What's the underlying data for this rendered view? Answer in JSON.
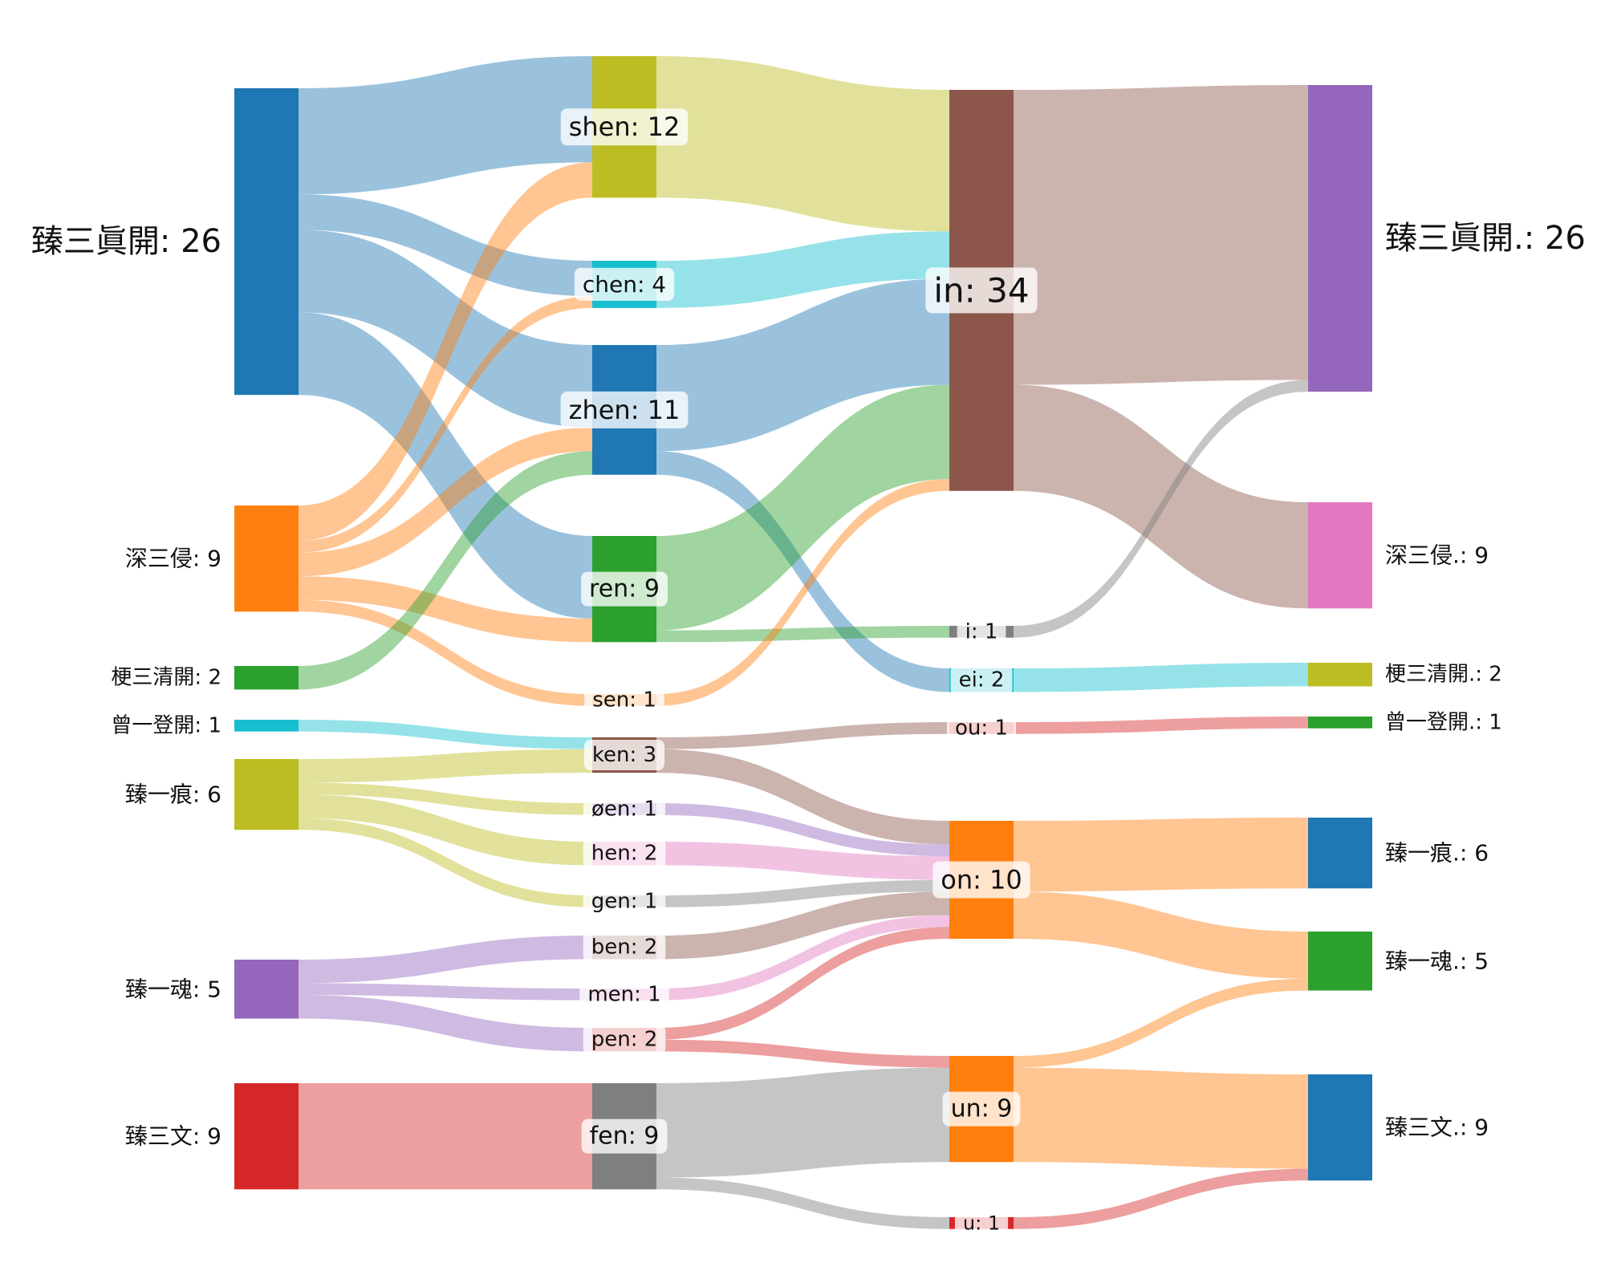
{
  "chart_data": {
    "type": "sankey",
    "title": "",
    "columns": [
      [
        "臻三眞開",
        "深三侵",
        "梗三清開",
        "曾一登開",
        "臻一痕",
        "臻一魂",
        "臻三文"
      ],
      [
        "shen",
        "chen",
        "zhen",
        "ren",
        "sen",
        "ken",
        "øen",
        "hen",
        "gen",
        "ben",
        "men",
        "pen",
        "fen"
      ],
      [
        "in",
        "i",
        "ei",
        "ou",
        "on",
        "un",
        "u"
      ],
      [
        "臻三眞開.",
        "深三侵.",
        "梗三清開.",
        "曾一登開.",
        "臻一痕.",
        "臻一魂.",
        "臻三文."
      ]
    ],
    "nodes": [
      {
        "name": "臻三眞開",
        "value": 26,
        "label": "臻三眞開: 26",
        "color": "#1f77b4"
      },
      {
        "name": "深三侵",
        "value": 9,
        "label": "深三侵: 9",
        "color": "#ff7f0e"
      },
      {
        "name": "梗三清開",
        "value": 2,
        "label": "梗三清開: 2",
        "color": "#2ca02c"
      },
      {
        "name": "曾一登開",
        "value": 1,
        "label": "曾一登開: 1",
        "color": "#17becf"
      },
      {
        "name": "臻一痕",
        "value": 6,
        "label": "臻一痕: 6",
        "color": "#bcbd22"
      },
      {
        "name": "臻一魂",
        "value": 5,
        "label": "臻一魂: 5",
        "color": "#9467bd"
      },
      {
        "name": "臻三文",
        "value": 9,
        "label": "臻三文: 9",
        "color": "#d62728"
      },
      {
        "name": "shen",
        "value": 12,
        "label": "shen: 12",
        "color": "#bcbd22"
      },
      {
        "name": "chen",
        "value": 4,
        "label": "chen: 4",
        "color": "#17becf"
      },
      {
        "name": "zhen",
        "value": 11,
        "label": "zhen: 11",
        "color": "#1f77b4"
      },
      {
        "name": "ren",
        "value": 9,
        "label": "ren: 9",
        "color": "#2ca02c"
      },
      {
        "name": "sen",
        "value": 1,
        "label": "sen: 1",
        "color": "#ff7f0e"
      },
      {
        "name": "ken",
        "value": 3,
        "label": "ken: 3",
        "color": "#8c564b"
      },
      {
        "name": "øen",
        "value": 1,
        "label": "øen: 1",
        "color": "#9467bd"
      },
      {
        "name": "hen",
        "value": 2,
        "label": "hen: 2",
        "color": "#e377c2"
      },
      {
        "name": "gen",
        "value": 1,
        "label": "gen: 1",
        "color": "#7f7f7f"
      },
      {
        "name": "ben",
        "value": 2,
        "label": "ben: 2",
        "color": "#8c564b"
      },
      {
        "name": "men",
        "value": 1,
        "label": "men: 1",
        "color": "#e377c2"
      },
      {
        "name": "pen",
        "value": 2,
        "label": "pen: 2",
        "color": "#d62728"
      },
      {
        "name": "fen",
        "value": 9,
        "label": "fen: 9",
        "color": "#7f7f7f"
      },
      {
        "name": "in",
        "value": 34,
        "label": "in: 34",
        "color": "#8c564b"
      },
      {
        "name": "i",
        "value": 1,
        "label": "i: 1",
        "color": "#7f7f7f"
      },
      {
        "name": "ei",
        "value": 2,
        "label": "ei: 2",
        "color": "#17becf"
      },
      {
        "name": "ou",
        "value": 1,
        "label": "ou: 1",
        "color": "#d62728"
      },
      {
        "name": "on",
        "value": 10,
        "label": "on: 10",
        "color": "#ff7f0e"
      },
      {
        "name": "un",
        "value": 9,
        "label": "un: 9",
        "color": "#ff7f0e"
      },
      {
        "name": "u",
        "value": 1,
        "label": "u: 1",
        "color": "#d62728"
      },
      {
        "name": "臻三眞開.",
        "value": 26,
        "label": "臻三眞開.: 26",
        "color": "#9467bd"
      },
      {
        "name": "深三侵.",
        "value": 9,
        "label": "深三侵.: 9",
        "color": "#e377c2"
      },
      {
        "name": "梗三清開.",
        "value": 2,
        "label": "梗三清開.: 2",
        "color": "#bcbd22"
      },
      {
        "name": "曾一登開.",
        "value": 1,
        "label": "曾一登開.: 1",
        "color": "#2ca02c"
      },
      {
        "name": "臻一痕.",
        "value": 6,
        "label": "臻一痕.: 6",
        "color": "#1f77b4"
      },
      {
        "name": "臻一魂.",
        "value": 5,
        "label": "臻一魂.: 5",
        "color": "#2ca02c"
      },
      {
        "name": "臻三文.",
        "value": 9,
        "label": "臻三文.: 9",
        "color": "#1f77b4"
      }
    ],
    "links": [
      {
        "source": "臻三眞開",
        "target": "shen",
        "value": 9
      },
      {
        "source": "臻三眞開",
        "target": "chen",
        "value": 3
      },
      {
        "source": "臻三眞開",
        "target": "zhen",
        "value": 7
      },
      {
        "source": "臻三眞開",
        "target": "ren",
        "value": 7
      },
      {
        "source": "深三侵",
        "target": "shen",
        "value": 3
      },
      {
        "source": "深三侵",
        "target": "chen",
        "value": 1
      },
      {
        "source": "深三侵",
        "target": "zhen",
        "value": 2
      },
      {
        "source": "深三侵",
        "target": "ren",
        "value": 2
      },
      {
        "source": "深三侵",
        "target": "sen",
        "value": 1
      },
      {
        "source": "梗三清開",
        "target": "zhen",
        "value": 2
      },
      {
        "source": "曾一登開",
        "target": "ken",
        "value": 1
      },
      {
        "source": "臻一痕",
        "target": "ken",
        "value": 2
      },
      {
        "source": "臻一痕",
        "target": "øen",
        "value": 1
      },
      {
        "source": "臻一痕",
        "target": "hen",
        "value": 2
      },
      {
        "source": "臻一痕",
        "target": "gen",
        "value": 1
      },
      {
        "source": "臻一魂",
        "target": "ben",
        "value": 2
      },
      {
        "source": "臻一魂",
        "target": "men",
        "value": 1
      },
      {
        "source": "臻一魂",
        "target": "pen",
        "value": 2
      },
      {
        "source": "臻三文",
        "target": "fen",
        "value": 9
      },
      {
        "source": "shen",
        "target": "in",
        "value": 12
      },
      {
        "source": "chen",
        "target": "in",
        "value": 4
      },
      {
        "source": "zhen",
        "target": "in",
        "value": 9
      },
      {
        "source": "zhen",
        "target": "ei",
        "value": 2
      },
      {
        "source": "ren",
        "target": "in",
        "value": 8
      },
      {
        "source": "ren",
        "target": "i",
        "value": 1
      },
      {
        "source": "sen",
        "target": "in",
        "value": 1
      },
      {
        "source": "ken",
        "target": "ou",
        "value": 1
      },
      {
        "source": "ken",
        "target": "on",
        "value": 2
      },
      {
        "source": "øen",
        "target": "on",
        "value": 1
      },
      {
        "source": "hen",
        "target": "on",
        "value": 2
      },
      {
        "source": "gen",
        "target": "on",
        "value": 1
      },
      {
        "source": "ben",
        "target": "on",
        "value": 2
      },
      {
        "source": "men",
        "target": "on",
        "value": 1
      },
      {
        "source": "pen",
        "target": "on",
        "value": 1
      },
      {
        "source": "pen",
        "target": "un",
        "value": 1
      },
      {
        "source": "fen",
        "target": "un",
        "value": 8
      },
      {
        "source": "fen",
        "target": "u",
        "value": 1
      },
      {
        "source": "in",
        "target": "臻三眞開.",
        "value": 25
      },
      {
        "source": "in",
        "target": "深三侵.",
        "value": 9
      },
      {
        "source": "i",
        "target": "臻三眞開.",
        "value": 1
      },
      {
        "source": "ei",
        "target": "梗三清開.",
        "value": 2
      },
      {
        "source": "ou",
        "target": "曾一登開.",
        "value": 1
      },
      {
        "source": "on",
        "target": "臻一痕.",
        "value": 6
      },
      {
        "source": "on",
        "target": "臻一魂.",
        "value": 4
      },
      {
        "source": "un",
        "target": "臻一魂.",
        "value": 1
      },
      {
        "source": "un",
        "target": "臻三文.",
        "value": 8
      },
      {
        "source": "u",
        "target": "臻三文.",
        "value": 1
      }
    ]
  }
}
